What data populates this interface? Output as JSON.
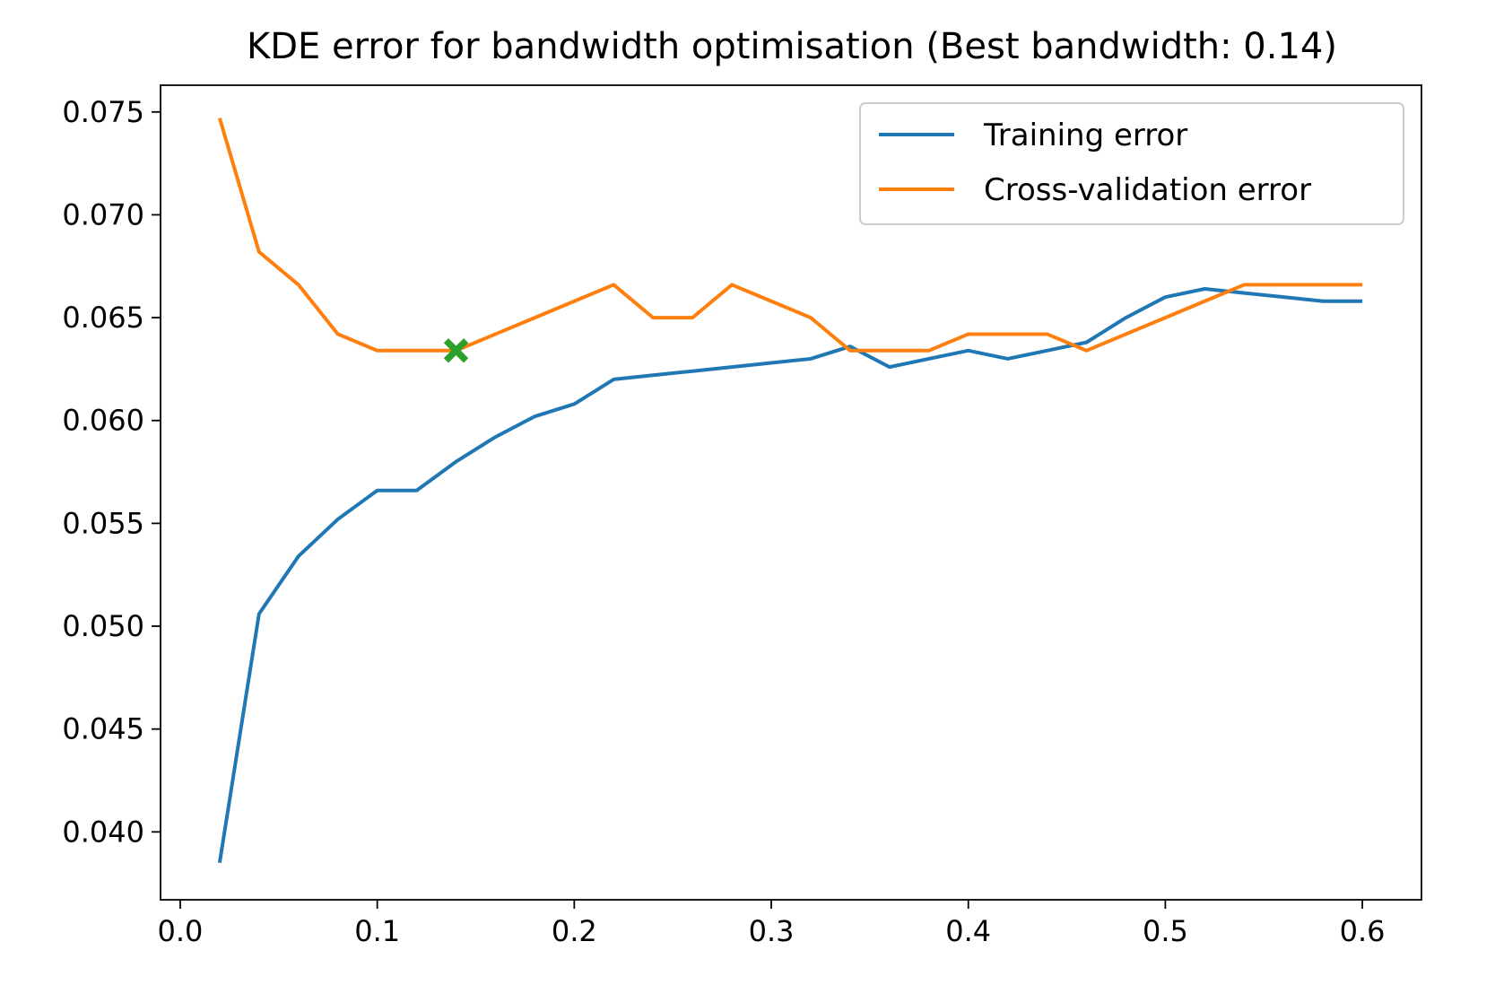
{
  "chart_data": {
    "type": "line",
    "title": "KDE error for bandwidth optimisation (Best bandwidth: 0.14)",
    "xlabel": "",
    "ylabel": "",
    "xlim": [
      -0.01,
      0.63
    ],
    "ylim": [
      0.0367,
      0.0763
    ],
    "xticks": [
      0.0,
      0.1,
      0.2,
      0.3,
      0.4,
      0.5,
      0.6
    ],
    "xtick_labels": [
      "0.0",
      "0.1",
      "0.2",
      "0.3",
      "0.4",
      "0.5",
      "0.6"
    ],
    "yticks": [
      0.04,
      0.045,
      0.05,
      0.055,
      0.06,
      0.065,
      0.07,
      0.075
    ],
    "ytick_labels": [
      "0.040",
      "0.045",
      "0.050",
      "0.055",
      "0.060",
      "0.065",
      "0.070",
      "0.075"
    ],
    "grid": false,
    "legend_position": "top-right",
    "x": [
      0.02,
      0.04,
      0.06,
      0.08,
      0.1,
      0.12,
      0.14,
      0.16,
      0.18,
      0.2,
      0.22,
      0.24,
      0.26,
      0.28,
      0.3,
      0.32,
      0.34,
      0.36,
      0.38,
      0.4,
      0.42,
      0.44,
      0.46,
      0.48,
      0.5,
      0.52,
      0.54,
      0.56,
      0.58,
      0.6
    ],
    "series": [
      {
        "name": "Training error",
        "color": "#1f77b4",
        "values": [
          0.0385,
          0.0506,
          0.0534,
          0.0552,
          0.0566,
          0.0566,
          0.058,
          0.0592,
          0.0602,
          0.0608,
          0.062,
          0.0622,
          0.0624,
          0.0626,
          0.0628,
          0.063,
          0.0636,
          0.0626,
          0.063,
          0.0634,
          0.063,
          0.0634,
          0.0638,
          0.065,
          0.066,
          0.0664,
          0.0662,
          0.066,
          0.0658,
          0.0658
        ]
      },
      {
        "name": "Cross-validation error",
        "color": "#ff7f0e",
        "values": [
          0.0747,
          0.0682,
          0.0666,
          0.0642,
          0.0634,
          0.0634,
          0.0634,
          0.0642,
          0.065,
          0.0658,
          0.0666,
          0.065,
          0.065,
          0.0666,
          0.0658,
          0.065,
          0.0634,
          0.0634,
          0.0634,
          0.0642,
          0.0642,
          0.0642,
          0.0634,
          0.0642,
          0.065,
          0.0658,
          0.0666,
          0.0666,
          0.0666,
          0.0666
        ]
      }
    ],
    "best_point": {
      "x": 0.14,
      "y": 0.0634,
      "color": "#2ca02c",
      "marker": "X"
    }
  }
}
